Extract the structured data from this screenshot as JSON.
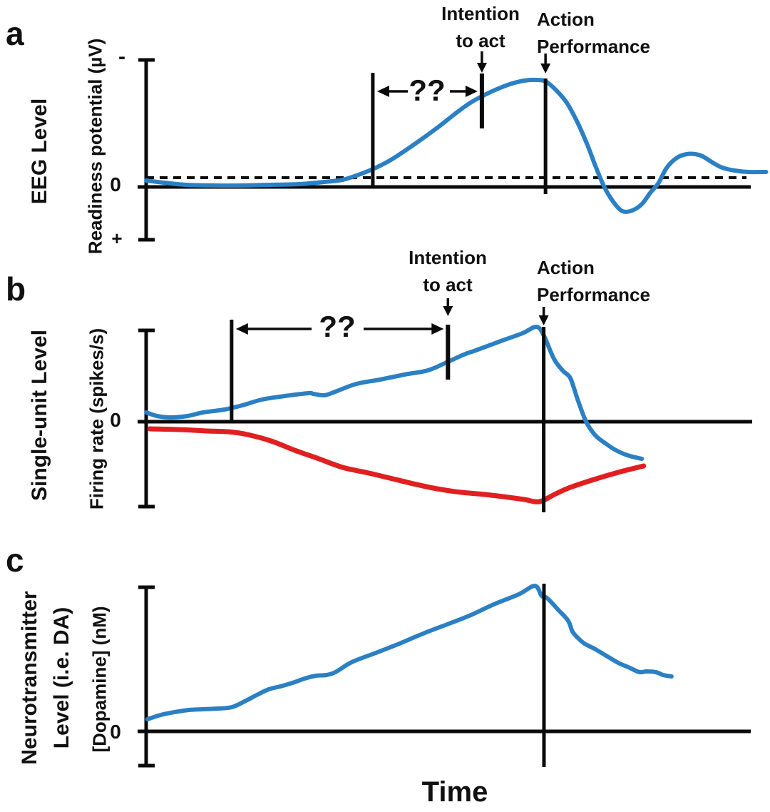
{
  "xlabel": "Time",
  "colors": {
    "curve_blue": "#2b80c4",
    "curve_red": "#e02020",
    "axis_black": "#0a0a0a",
    "text": "#111111",
    "background": "#ffffff"
  },
  "chart_data": [
    {
      "id": "a",
      "type": "line",
      "panel_label": "a",
      "level_label": "EEG Level",
      "ylabel": "Readiness potential (µV)",
      "y_axis_marks": {
        "top": "-",
        "zero": "0",
        "bottom": "+"
      },
      "x_units": "time (arbitrary units, 0–100)",
      "y_units": "amplitude (arbitrary units, negative up)",
      "grid": false,
      "baseline_dashed_y": 0.13,
      "events": {
        "rp_onset": 37.4,
        "intention_to_act": 55.4,
        "action_performance": 65.9
      },
      "annotations": {
        "intention": "Intention\nto act",
        "action": "Action\nPerformance",
        "interval_unknown": "??"
      },
      "series": [
        {
          "name": "readiness-potential",
          "color": "#2b80c4",
          "points": [
            [
              0,
              0.09
            ],
            [
              2.9,
              0.06
            ],
            [
              6.5,
              0.03
            ],
            [
              11.2,
              0.02
            ],
            [
              15.9,
              0.02
            ],
            [
              20.6,
              0.03
            ],
            [
              25.3,
              0.04
            ],
            [
              29.4,
              0.07
            ],
            [
              32.4,
              0.1
            ],
            [
              34.7,
              0.16
            ],
            [
              37.4,
              0.25
            ],
            [
              40,
              0.36
            ],
            [
              42.4,
              0.49
            ],
            [
              45.3,
              0.66
            ],
            [
              48.2,
              0.84
            ],
            [
              51.2,
              1.04
            ],
            [
              53.5,
              1.18
            ],
            [
              55.4,
              1.27
            ],
            [
              57.6,
              1.36
            ],
            [
              60,
              1.44
            ],
            [
              62.4,
              1.49
            ],
            [
              64.4,
              1.5
            ],
            [
              65.9,
              1.48
            ],
            [
              67.6,
              1.36
            ],
            [
              69.4,
              1.18
            ],
            [
              71.2,
              0.9
            ],
            [
              72.9,
              0.57
            ],
            [
              74.1,
              0.3
            ],
            [
              75.6,
              0.0
            ],
            [
              77.1,
              -0.21
            ],
            [
              78.6,
              -0.34
            ],
            [
              80.2,
              -0.33
            ],
            [
              81.8,
              -0.24
            ],
            [
              83.2,
              -0.08
            ],
            [
              84.5,
              0.05
            ],
            [
              85.9,
              0.27
            ],
            [
              87.6,
              0.41
            ],
            [
              89.2,
              0.46
            ],
            [
              90.6,
              0.46
            ],
            [
              91.8,
              0.43
            ],
            [
              93.5,
              0.34
            ],
            [
              95.1,
              0.27
            ],
            [
              97.1,
              0.23
            ],
            [
              99.4,
              0.21
            ],
            [
              102.3,
              0.21
            ]
          ]
        }
      ]
    },
    {
      "id": "b",
      "type": "line",
      "panel_label": "b",
      "level_label": "Single-unit Level",
      "ylabel": "Firing rate (spikes/s)",
      "y_axis_marks": {
        "zero": "0"
      },
      "x_units": "time (arbitrary units, 0–100)",
      "y_units": "firing rate change (arbitrary units)",
      "grid": false,
      "events": {
        "rp_onset": 14.1,
        "intention_to_act": 49.8,
        "action_performance": 65.6
      },
      "annotations": {
        "intention": "Intention\nto act",
        "action": "Action\nPerformance",
        "interval_unknown": "??"
      },
      "series": [
        {
          "name": "firing-rate-increasing",
          "color": "#2b80c4",
          "points": [
            [
              0,
              0.13
            ],
            [
              1.8,
              0.08
            ],
            [
              4.1,
              0.06
            ],
            [
              6.8,
              0.08
            ],
            [
              9.4,
              0.13
            ],
            [
              12.9,
              0.17
            ],
            [
              15.9,
              0.23
            ],
            [
              19.1,
              0.31
            ],
            [
              22.9,
              0.36
            ],
            [
              26.8,
              0.4
            ],
            [
              27.6,
              0.39
            ],
            [
              29.4,
              0.37
            ],
            [
              31.2,
              0.42
            ],
            [
              34.7,
              0.53
            ],
            [
              38.6,
              0.59
            ],
            [
              42.6,
              0.66
            ],
            [
              46.5,
              0.72
            ],
            [
              49.8,
              0.84
            ],
            [
              52.4,
              0.94
            ],
            [
              54.4,
              1.0
            ],
            [
              58.2,
              1.12
            ],
            [
              62.1,
              1.24
            ],
            [
              64.4,
              1.33
            ],
            [
              65.6,
              1.21
            ],
            [
              67.3,
              0.88
            ],
            [
              68.8,
              0.71
            ],
            [
              70.0,
              0.61
            ],
            [
              71.2,
              0.31
            ],
            [
              72.6,
              0.0
            ],
            [
              74.1,
              -0.19
            ],
            [
              75.9,
              -0.31
            ],
            [
              77.3,
              -0.39
            ],
            [
              79.4,
              -0.47
            ],
            [
              81.8,
              -0.52
            ]
          ]
        },
        {
          "name": "firing-rate-decreasing",
          "color": "#e02020",
          "points": [
            [
              0.6,
              -0.1
            ],
            [
              5.3,
              -0.11
            ],
            [
              10,
              -0.13
            ],
            [
              13.5,
              -0.14
            ],
            [
              16.7,
              -0.18
            ],
            [
              20.6,
              -0.27
            ],
            [
              24.5,
              -0.4
            ],
            [
              28.5,
              -0.52
            ],
            [
              32.4,
              -0.64
            ],
            [
              36.2,
              -0.71
            ],
            [
              40.2,
              -0.79
            ],
            [
              44.1,
              -0.87
            ],
            [
              48,
              -0.94
            ],
            [
              52,
              -0.99
            ],
            [
              55.9,
              -1.02
            ],
            [
              59.8,
              -1.06
            ],
            [
              62.4,
              -1.09
            ],
            [
              64.9,
              -1.12
            ],
            [
              67.6,
              -1.01
            ],
            [
              70,
              -0.92
            ],
            [
              73.9,
              -0.81
            ],
            [
              77.9,
              -0.71
            ],
            [
              82.1,
              -0.62
            ]
          ]
        }
      ]
    },
    {
      "id": "c",
      "type": "line",
      "panel_label": "c",
      "level_label": "Neurotransmitter\nLevel (i.e. DA)",
      "ylabel": "[Dopamine] (nM)",
      "y_axis_marks": {
        "zero": "0"
      },
      "x_units": "time (arbitrary units, 0–100)",
      "y_units": "concentration (arbitrary units)",
      "grid": false,
      "events": {
        "action_performance": 65.8
      },
      "annotations": {},
      "series": [
        {
          "name": "dopamine-concentration",
          "color": "#2b80c4",
          "points": [
            [
              0.2,
              0.17
            ],
            [
              2.4,
              0.23
            ],
            [
              4.7,
              0.27
            ],
            [
              7.1,
              0.3
            ],
            [
              9.4,
              0.31
            ],
            [
              11.8,
              0.32
            ],
            [
              14.2,
              0.34
            ],
            [
              16.5,
              0.43
            ],
            [
              18.3,
              0.51
            ],
            [
              20.3,
              0.59
            ],
            [
              22.2,
              0.63
            ],
            [
              24.2,
              0.68
            ],
            [
              26.2,
              0.74
            ],
            [
              28.1,
              0.78
            ],
            [
              29.8,
              0.79
            ],
            [
              31.3,
              0.83
            ],
            [
              34.0,
              0.97
            ],
            [
              38.0,
              1.1
            ],
            [
              41.9,
              1.23
            ],
            [
              45.8,
              1.37
            ],
            [
              49.8,
              1.5
            ],
            [
              53.7,
              1.63
            ],
            [
              57.5,
              1.78
            ],
            [
              61.6,
              1.92
            ],
            [
              64.3,
              2.04
            ],
            [
              65.4,
              1.9
            ],
            [
              66.3,
              1.87
            ],
            [
              68.2,
              1.7
            ],
            [
              69.8,
              1.55
            ],
            [
              70.5,
              1.4
            ],
            [
              71.4,
              1.31
            ],
            [
              72.5,
              1.23
            ],
            [
              74.1,
              1.16
            ],
            [
              76.1,
              1.06
            ],
            [
              78.1,
              0.96
            ],
            [
              80.0,
              0.89
            ],
            [
              81.6,
              0.83
            ],
            [
              82.8,
              0.84
            ],
            [
              84.3,
              0.83
            ],
            [
              85.5,
              0.79
            ],
            [
              86.9,
              0.77
            ]
          ]
        }
      ]
    }
  ]
}
